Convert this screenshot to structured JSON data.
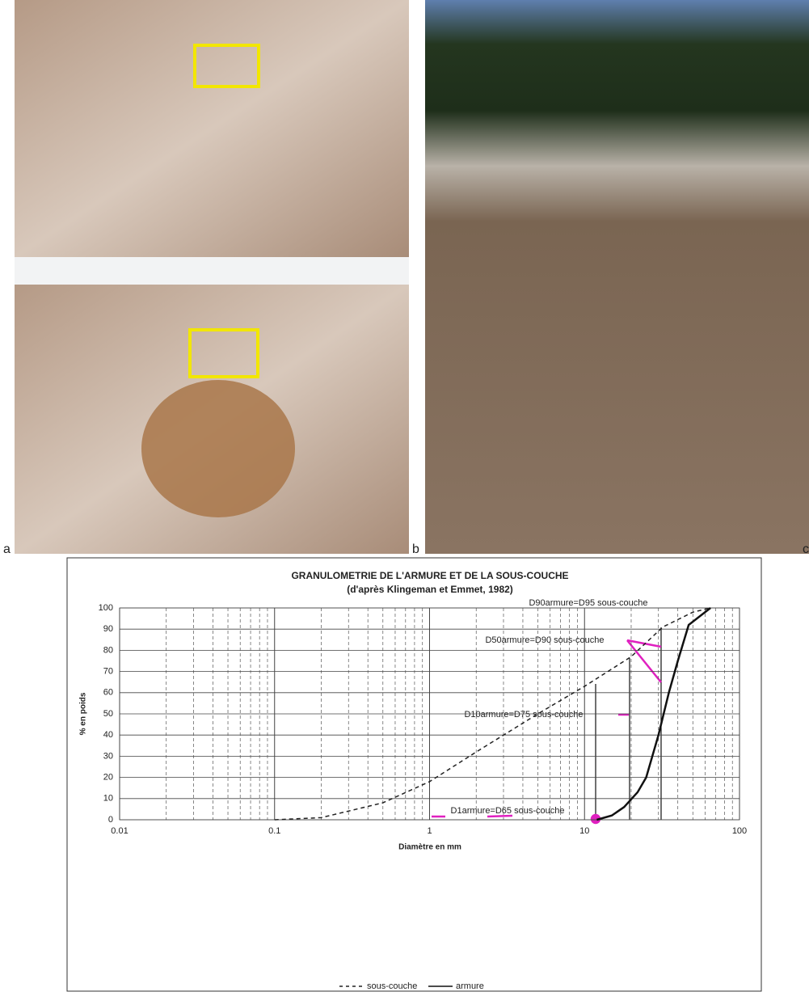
{
  "panel_labels": [
    "a",
    "b",
    "c"
  ],
  "chart_data": {
    "type": "line",
    "title": "GRANULOMETRIE DE L'ARMURE ET DE LA SOUS-COUCHE",
    "subtitle": "(d'après Klingeman et Emmet, 1982)",
    "x_label": "Diamètre en mm",
    "y_label": "% en poids",
    "log_x": true,
    "grid": true,
    "xlim": [
      0.01,
      100
    ],
    "xticks": [
      0.01,
      0.1,
      1,
      10,
      100
    ],
    "ylim": [
      0,
      100
    ],
    "yticks": [
      0,
      10,
      20,
      30,
      40,
      50,
      60,
      70,
      80,
      90,
      100
    ],
    "legend": "bottom",
    "series": [
      {
        "name": "sous-couche",
        "color": "#222222",
        "dash": true,
        "x": [
          0.1,
          0.2,
          0.5,
          1,
          2,
          5,
          10,
          20,
          32,
          50,
          65
        ],
        "values": [
          0,
          1,
          8,
          18,
          32,
          50,
          63,
          77,
          91,
          98,
          100
        ]
      },
      {
        "name": "armure",
        "color": "#111111",
        "dash": false,
        "x": [
          12,
          15,
          18,
          22,
          25,
          30,
          35,
          40,
          47,
          65
        ],
        "values": [
          0,
          2,
          6,
          13,
          20,
          40,
          60,
          75,
          92,
          100
        ]
      }
    ],
    "annotations": [
      "D90armure=D95 sous-couche",
      "D50armure=D90 sous-couche",
      "D10armure=D75 sous-couche",
      "D1armure=D65 sous-couche"
    ]
  }
}
